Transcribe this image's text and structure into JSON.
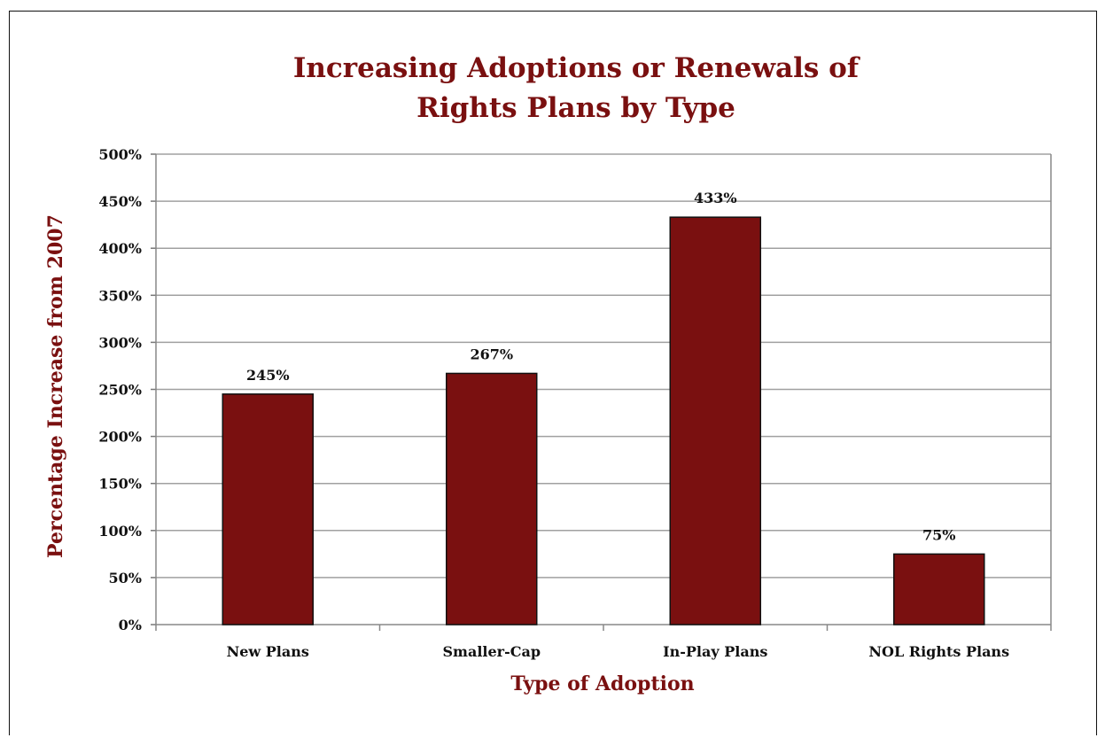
{
  "chart_data": {
    "type": "bar",
    "title": [
      "Increasing Adoptions or Renewals of",
      "Rights Plans by Type"
    ],
    "xlabel": "Type of Adoption",
    "ylabel": "Percentage Increase from 2007",
    "categories": [
      "New Plans",
      "Smaller-Cap",
      "In-Play Plans",
      "NOL Rights Plans"
    ],
    "values": [
      245,
      267,
      433,
      75
    ],
    "data_labels": [
      "245%",
      "267%",
      "433%",
      "75%"
    ],
    "ylim": [
      0,
      500
    ],
    "yticks": [
      0,
      50,
      100,
      150,
      200,
      250,
      300,
      350,
      400,
      450,
      500
    ],
    "ytick_labels": [
      "0%",
      "50%",
      "100%",
      "150%",
      "200%",
      "250%",
      "300%",
      "350%",
      "400%",
      "450%",
      "500%"
    ],
    "grid": true,
    "legend": "none",
    "colors": {
      "bar": "#7a1010",
      "title": "#7a1010",
      "grid": "#a0a0a0"
    }
  }
}
